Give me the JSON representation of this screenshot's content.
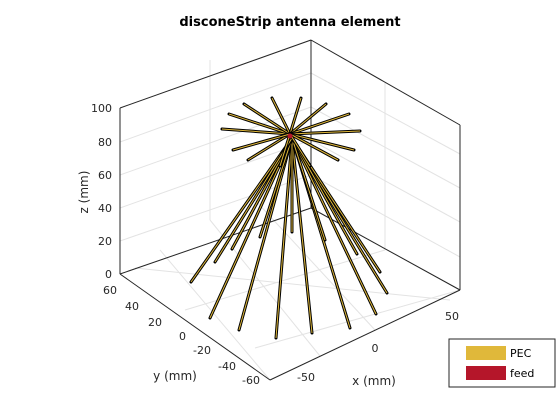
{
  "title": "disconeStrip antenna element",
  "axes": {
    "x_label": "x (mm)",
    "y_label": "y (mm)",
    "z_label": "z (mm)",
    "x_ticks": [
      "-50",
      "0",
      "50"
    ],
    "y_ticks": [
      "60",
      "40",
      "20",
      "0",
      "-20",
      "-40",
      "-60"
    ],
    "z_ticks": [
      "0",
      "20",
      "40",
      "60",
      "80",
      "100"
    ]
  },
  "legend": {
    "items": [
      {
        "label": "PEC",
        "color": "#e0b83a"
      },
      {
        "label": "feed",
        "color": "#b5162a"
      }
    ]
  },
  "colors": {
    "pec": "#e0b83a",
    "strip_edge": "#000000",
    "feed": "#b5162a",
    "box": "#262626",
    "grid": "#e3e3e3"
  }
}
